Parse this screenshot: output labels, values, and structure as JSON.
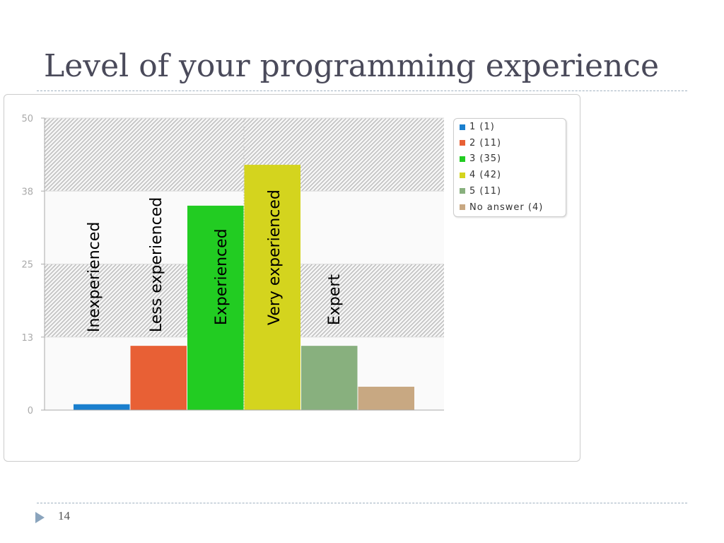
{
  "slide": {
    "title": "Level of your programming experience",
    "page_number": "14"
  },
  "chart_data": {
    "type": "bar",
    "title": "Level of your programming experience",
    "categories": [
      "1",
      "2",
      "3",
      "4",
      "5",
      "No answer"
    ],
    "values": [
      1,
      11,
      35,
      42,
      11,
      4
    ],
    "colors": [
      "#1a7fce",
      "#e86035",
      "#22cc22",
      "#d4d41e",
      "#88b07e",
      "#c8a882"
    ],
    "legend": [
      "1 (1)",
      "2 (11)",
      "3 (35)",
      "4 (42)",
      "5 (11)",
      "No answer (4)"
    ],
    "legend_placement": "top-right",
    "ylim": [
      0,
      50
    ],
    "yticks": [
      0,
      12.5,
      25,
      37.5,
      50
    ],
    "ytick_labels": [
      "0",
      "13",
      "25",
      "38",
      "50"
    ],
    "annotations": [
      "Inexperienced",
      "Less experienced",
      "Experienced",
      "Very experienced",
      "Expert"
    ],
    "xlabel": "",
    "ylabel": ""
  }
}
